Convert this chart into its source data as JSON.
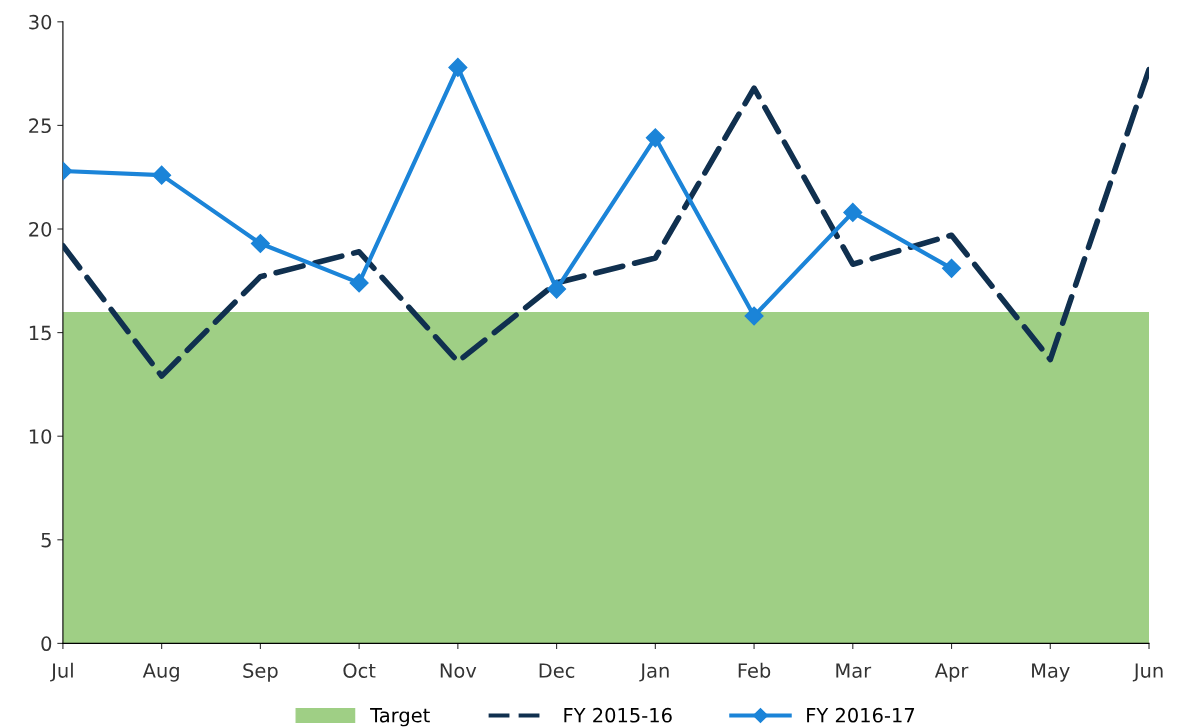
{
  "chart_data": {
    "type": "line",
    "categories": [
      "Jul",
      "Aug",
      "Sep",
      "Oct",
      "Nov",
      "Dec",
      "Jan",
      "Feb",
      "Mar",
      "Apr",
      "May",
      "Jun"
    ],
    "series": [
      {
        "name": "Target",
        "type": "area",
        "color": "#9fcf85",
        "values": [
          16,
          16,
          16,
          16,
          16,
          16,
          16,
          16,
          16,
          16,
          16,
          16
        ]
      },
      {
        "name": "FY 2015-16",
        "color": "#10304f",
        "line_style": "dashed",
        "marker": "none",
        "values": [
          19.2,
          12.9,
          17.7,
          18.9,
          13.6,
          17.4,
          18.6,
          26.8,
          18.3,
          19.7,
          13.7,
          27.7
        ]
      },
      {
        "name": "FY 2016-17",
        "color": "#1b84d8",
        "line_style": "solid",
        "marker": "diamond",
        "values": [
          22.8,
          22.6,
          19.3,
          17.4,
          27.8,
          17.1,
          24.4,
          15.8,
          20.8,
          18.1,
          null,
          null
        ]
      }
    ],
    "ylim": [
      0,
      30
    ],
    "yticks": [
      0,
      5,
      10,
      15,
      20,
      25,
      30
    ],
    "grid": false,
    "legend": "bottom"
  }
}
